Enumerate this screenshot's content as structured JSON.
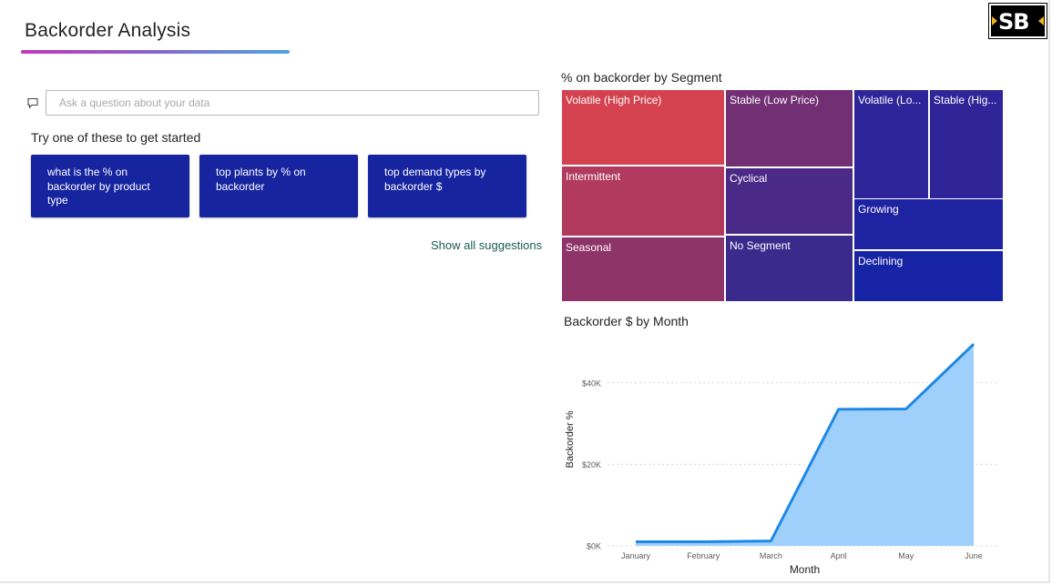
{
  "page": {
    "title": "Backorder Analysis",
    "logo_text": "SB"
  },
  "qa": {
    "placeholder": "Ask a question about your data",
    "prompt": "Try one of these to get started",
    "suggestions": [
      "what is the % on backorder by product type",
      "top plants by % on backorder",
      "top demand types by backorder $"
    ],
    "show_all": "Show all suggestions"
  },
  "treemap": {
    "title": "% on backorder by Segment",
    "tiles": [
      {
        "label": "Volatile (High Price)",
        "color": "#d5424f"
      },
      {
        "label": "Intermittent",
        "color": "#b13a5e"
      },
      {
        "label": "Seasonal",
        "color": "#8e3468"
      },
      {
        "label": "Stable (Low Price)",
        "color": "#722f74"
      },
      {
        "label": "Cyclical",
        "color": "#4a2a86"
      },
      {
        "label": "No Segment",
        "color": "#3a2a8c"
      },
      {
        "label": "Volatile (Lo...",
        "color": "#2e259a"
      },
      {
        "label": "Stable (Hig...",
        "color": "#2f2598"
      },
      {
        "label": "Growing",
        "color": "#1e23a2"
      },
      {
        "label": "Declining",
        "color": "#1724a5"
      }
    ]
  },
  "chart_data": {
    "type": "area",
    "title": "Backorder $ by Month",
    "xlabel": "Month",
    "ylabel": "Backorder %",
    "categories": [
      "January",
      "February",
      "March",
      "April",
      "May",
      "June"
    ],
    "values": [
      1000,
      1000,
      1200,
      33500,
      33600,
      49500
    ],
    "ylim": [
      0,
      50000
    ],
    "yticks": [
      0,
      20000,
      40000
    ],
    "ytick_labels": [
      "$0K",
      "$20K",
      "$40K"
    ],
    "line_color": "#1f88e5",
    "fill_color": "#9fd0fb",
    "grid": true
  }
}
